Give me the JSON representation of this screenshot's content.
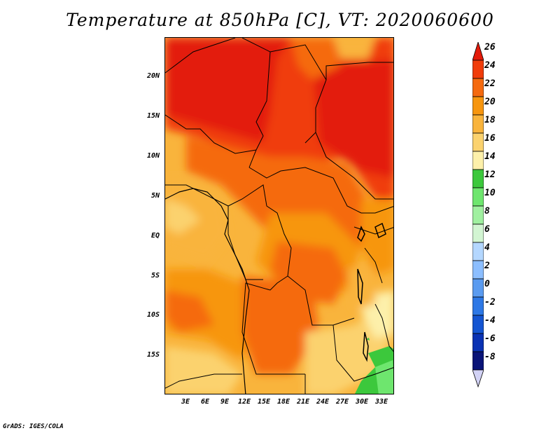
{
  "title": "Temperature at 850hPa [C], VT: 2020060600",
  "footer": "GrADS: IGES/COLA",
  "map": {
    "lat_labels": [
      "20N",
      "15N",
      "10N",
      "5N",
      "EQ",
      "5S",
      "10S",
      "15S"
    ],
    "lon_labels": [
      "3E",
      "6E",
      "9E",
      "12E",
      "15E",
      "18E",
      "21E",
      "24E",
      "27E",
      "30E",
      "33E"
    ],
    "lat_range": [
      -20,
      25
    ],
    "lon_range": [
      0,
      35
    ],
    "variable": "Temperature at 850hPa",
    "units": "C"
  },
  "colorbar": {
    "labels": [
      "26",
      "24",
      "22",
      "20",
      "18",
      "16",
      "14",
      "12",
      "10",
      "8",
      "6",
      "4",
      "2",
      "0",
      "-2",
      "-4",
      "-6",
      "-8"
    ],
    "colors": [
      "#e31a0a",
      "#f03c0a",
      "#f56a0f",
      "#f7960f",
      "#f9b43c",
      "#fbd26e",
      "#fdf0aa",
      "#3cc83c",
      "#6ee66e",
      "#a0f0a0",
      "#d2f5d2",
      "#b4d7ff",
      "#8cbeff",
      "#5a9bf0",
      "#2d78e6",
      "#1455d2",
      "#0a32b4",
      "#0a1478",
      "#d2d2f5"
    ]
  }
}
